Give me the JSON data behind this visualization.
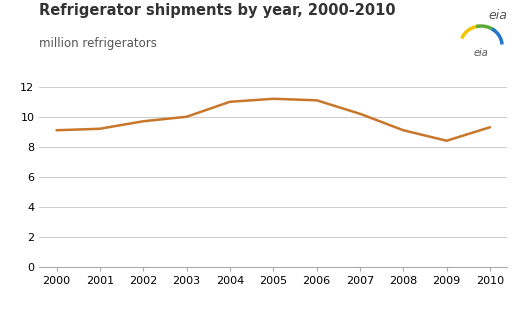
{
  "title": "Refrigerator shipments by year, 2000-2010",
  "ylabel": "million refrigerators",
  "years": [
    2000,
    2001,
    2002,
    2003,
    2004,
    2005,
    2006,
    2007,
    2008,
    2009,
    2010
  ],
  "values": [
    9.1,
    9.2,
    9.7,
    10.0,
    11.0,
    11.2,
    11.1,
    10.2,
    9.1,
    8.4,
    9.3
  ],
  "line_color": "#c8762a",
  "line_width": 1.8,
  "ylim": [
    0,
    12
  ],
  "yticks": [
    0,
    2,
    4,
    6,
    8,
    10,
    12
  ],
  "xlim": [
    1999.6,
    2010.4
  ],
  "background_color": "#ffffff",
  "grid_color": "#cccccc",
  "title_fontsize": 10.5,
  "subtitle_fontsize": 8.5,
  "tick_fontsize": 8,
  "eia_text": "eia",
  "eia_color": "#555555"
}
